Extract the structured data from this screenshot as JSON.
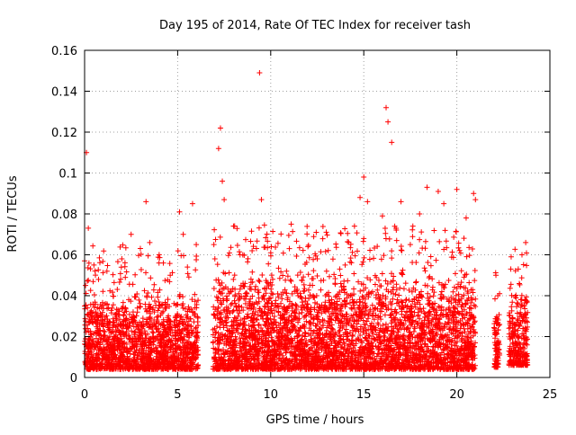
{
  "chart_data": {
    "type": "scatter",
    "title": "Day 195 of 2014, Rate Of TEC Index for receiver tash",
    "xlabel": "GPS time / hours",
    "ylabel": "ROTI / TECUs",
    "xlim": [
      0,
      25
    ],
    "ylim": [
      0,
      0.16
    ],
    "x_ticks": [
      "0",
      "5",
      "10",
      "15",
      "20",
      "25"
    ],
    "y_ticks": [
      "0",
      "0.02",
      "0.04",
      "0.06",
      "0.08",
      "0.1",
      "0.12",
      "0.14",
      "0.16"
    ],
    "grid": true,
    "marker": "+",
    "color": "#ff0000",
    "series": [
      {
        "name": "ROTI",
        "x": [
          0.1,
          0.2,
          0.05,
          0.5,
          1.2,
          2.0,
          2.5,
          3.3,
          3.5,
          4.0,
          4.6,
          5.1,
          5.3,
          5.8,
          6.0,
          7.0,
          7.2,
          7.3,
          7.4,
          7.5,
          8.0,
          8.5,
          9.0,
          9.4,
          9.5,
          10.0,
          11.0,
          12.0,
          12.5,
          13.0,
          14.0,
          14.5,
          14.8,
          15.0,
          15.2,
          16.0,
          16.2,
          16.3,
          16.5,
          17.0,
          17.5,
          18.0,
          18.4,
          19.0,
          19.3,
          20.0,
          20.5,
          20.9,
          21.0,
          22.1,
          22.2,
          22.9,
          23.3,
          23.5,
          23.7
        ],
        "y": [
          0.11,
          0.073,
          0.045,
          0.055,
          0.052,
          0.058,
          0.07,
          0.086,
          0.066,
          0.056,
          0.05,
          0.081,
          0.07,
          0.085,
          0.065,
          0.058,
          0.112,
          0.122,
          0.096,
          0.087,
          0.074,
          0.06,
          0.062,
          0.149,
          0.087,
          0.061,
          0.063,
          0.064,
          0.058,
          0.052,
          0.055,
          0.074,
          0.088,
          0.098,
          0.086,
          0.079,
          0.132,
          0.125,
          0.115,
          0.086,
          0.065,
          0.08,
          0.093,
          0.091,
          0.085,
          0.092,
          0.078,
          0.09,
          0.087,
          0.05,
          0.04,
          0.053,
          0.053,
          0.06,
          0.066
        ]
      }
    ],
    "dense_segments": [
      {
        "x_start": 0.0,
        "x_end": 6.1,
        "y_min": 0.004,
        "y_max": 0.045
      },
      {
        "x_start": 6.9,
        "x_end": 21.0,
        "y_min": 0.004,
        "y_max": 0.055
      },
      {
        "x_start": 22.0,
        "x_end": 22.3,
        "y_min": 0.005,
        "y_max": 0.035
      },
      {
        "x_start": 22.8,
        "x_end": 23.8,
        "y_min": 0.006,
        "y_max": 0.045
      }
    ]
  }
}
